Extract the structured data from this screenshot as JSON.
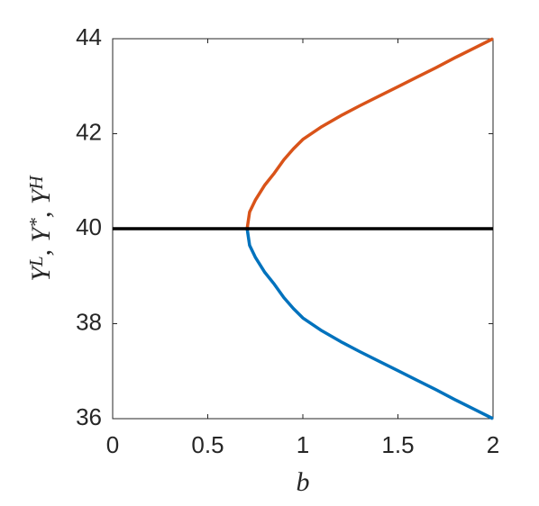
{
  "chart_data": {
    "type": "line",
    "x_label": "b",
    "y_label": "YL, Y*, YH",
    "xlim": [
      0,
      2
    ],
    "ylim": [
      36,
      44
    ],
    "xticks": [
      0,
      0.5,
      1,
      1.5,
      2
    ],
    "yticks": [
      36,
      38,
      40,
      42,
      44
    ],
    "series": [
      {
        "color": "#d95319",
        "x": [
          0.707,
          0.72,
          0.75,
          0.8,
          0.85,
          0.9,
          0.95,
          1.0,
          1.1,
          1.2,
          1.3,
          1.4,
          1.5,
          1.6,
          1.7,
          1.8,
          1.9,
          2.0
        ],
        "values": [
          40,
          40.35,
          40.6,
          40.92,
          41.17,
          41.45,
          41.68,
          41.88,
          42.15,
          42.38,
          42.59,
          42.79,
          42.99,
          43.19,
          43.39,
          43.6,
          43.8,
          44
        ]
      },
      {
        "color": "#0072bd",
        "x": [
          0.707,
          0.72,
          0.75,
          0.8,
          0.85,
          0.9,
          0.95,
          1.0,
          1.1,
          1.2,
          1.3,
          1.4,
          1.5,
          1.6,
          1.7,
          1.8,
          1.9,
          2.0
        ],
        "values": [
          40,
          39.65,
          39.4,
          39.08,
          38.83,
          38.55,
          38.32,
          38.12,
          37.85,
          37.62,
          37.41,
          37.21,
          37.01,
          36.81,
          36.61,
          36.4,
          36.2,
          36
        ]
      },
      {
        "color": "#000000",
        "x": [
          0,
          2
        ],
        "values": [
          40,
          40
        ]
      }
    ]
  }
}
